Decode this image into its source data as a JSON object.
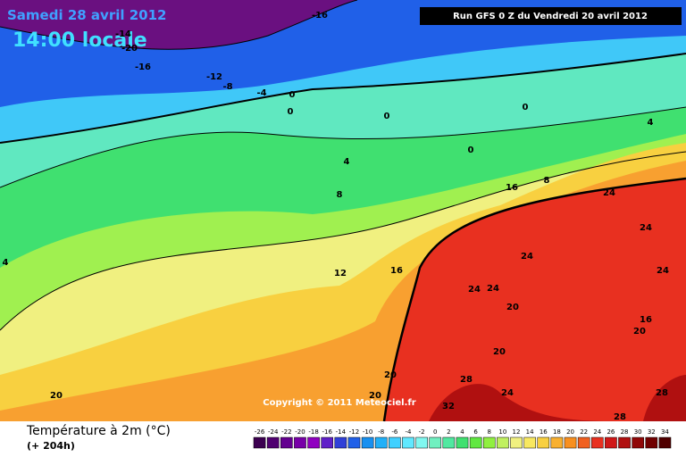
{
  "header": {
    "date": "Samedi 28 avril 2012",
    "time": "14:00 locale",
    "run": "Run GFS 0 Z du Vendredi 20 avril 2012"
  },
  "copyright": "Copyright © 2011 Meteociel.fr",
  "footer": {
    "title": "Température à 2m (°C)",
    "lead": "(+ 204h)"
  },
  "contour_labels": [
    -16,
    -14,
    -20,
    -16,
    -12,
    -8,
    -4,
    0,
    0,
    0,
    0,
    4,
    0,
    4,
    16,
    8,
    24,
    8,
    24,
    4,
    24,
    16,
    12,
    24,
    24,
    24,
    20,
    16,
    20,
    20,
    20,
    28,
    24,
    20,
    20,
    32,
    28,
    28
  ],
  "legend": {
    "values": [
      -26,
      -24,
      -22,
      -20,
      -18,
      -16,
      -14,
      -12,
      -10,
      -8,
      -6,
      -4,
      -2,
      0,
      2,
      4,
      6,
      8,
      10,
      12,
      14,
      16,
      18,
      20,
      22,
      24,
      26,
      28,
      30,
      32,
      34
    ],
    "colors": [
      "#3c0050",
      "#500070",
      "#640090",
      "#7800a8",
      "#9000c0",
      "#6020c8",
      "#3040d8",
      "#2060e8",
      "#1890f0",
      "#20b0f8",
      "#40d0ff",
      "#60e8ff",
      "#80f8f0",
      "#70f0c0",
      "#50e8a0",
      "#40e070",
      "#60e840",
      "#90f040",
      "#c0f060",
      "#f0f080",
      "#f8e860",
      "#f8d040",
      "#f8b030",
      "#f89020",
      "#f06020",
      "#e83020",
      "#d01818",
      "#b01010",
      "#900808",
      "#700000",
      "#500000"
    ]
  }
}
